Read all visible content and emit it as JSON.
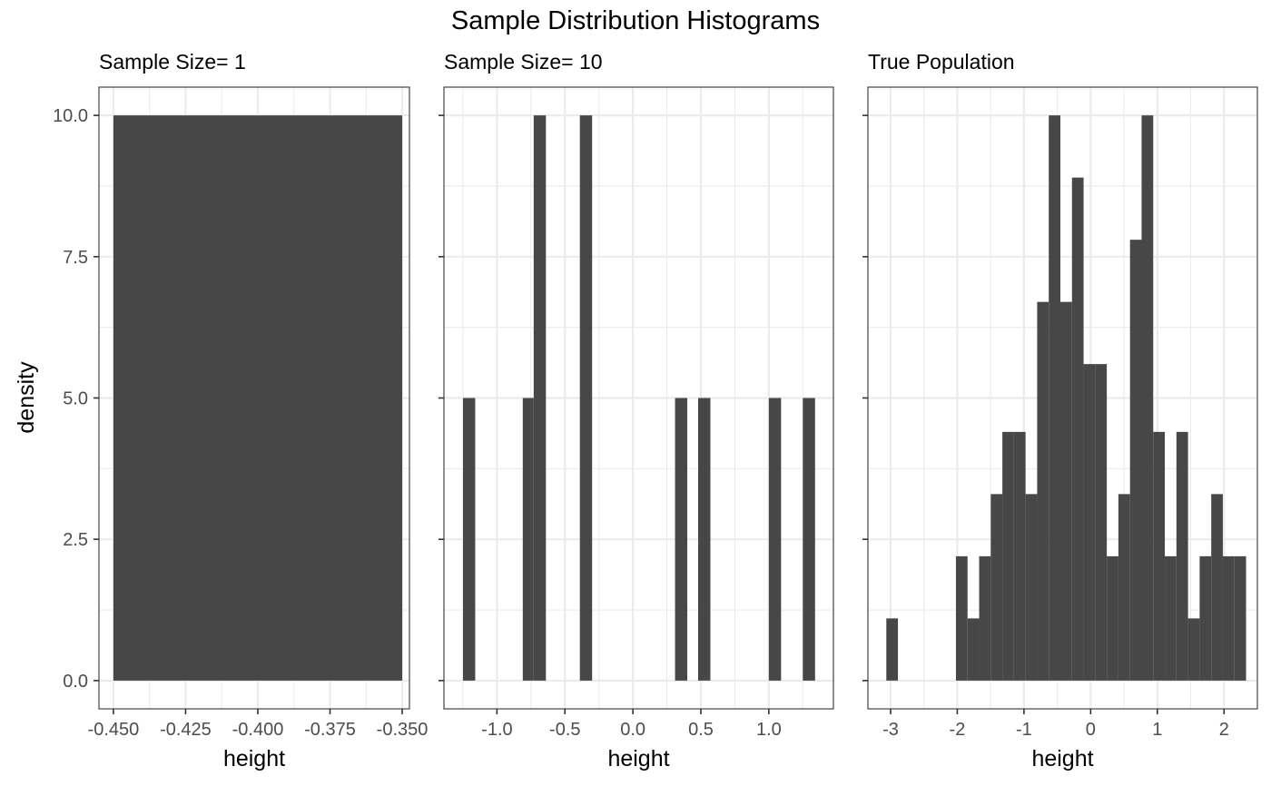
{
  "title": "Sample Distribution Histograms",
  "y_axis_label": "density",
  "colors": {
    "bar": "#474747",
    "grid": "#ebebeb",
    "frame": "#333333",
    "tick_text": "#4d4d4d"
  },
  "chart_data": [
    {
      "type": "bar",
      "title": "Sample Size= 1",
      "xlabel": "height",
      "ylabel": "density",
      "xlim": [
        -0.455,
        -0.3475
      ],
      "ylim": [
        -0.5,
        10.5
      ],
      "x_ticks": [
        -0.45,
        -0.425,
        -0.4,
        -0.375,
        -0.35
      ],
      "x_tick_labels": [
        "-0.450",
        "-0.425",
        "-0.400",
        "-0.375",
        "-0.350"
      ],
      "y_ticks": [
        0,
        2.5,
        5,
        7.5,
        10
      ],
      "y_tick_labels": [
        "0.0",
        "2.5",
        "5.0",
        "7.5",
        "10.0"
      ],
      "bars": [
        {
          "x0": -0.45,
          "x1": -0.35,
          "y": 10
        }
      ]
    },
    {
      "type": "bar",
      "title": "Sample Size= 10",
      "xlabel": "height",
      "ylabel": "density",
      "xlim": [
        -1.39,
        1.475
      ],
      "ylim": [
        -0.5,
        10.5
      ],
      "x_ticks": [
        -1.0,
        -0.5,
        0.0,
        0.5,
        1.0
      ],
      "x_tick_labels": [
        "-1.0",
        "-0.5",
        "0.0",
        "0.5",
        "1.0"
      ],
      "y_ticks": [
        0,
        2.5,
        5,
        7.5,
        10
      ],
      "y_tick_labels": [
        "",
        "",
        "",
        "",
        ""
      ],
      "bars": [
        {
          "x0": -1.25,
          "x1": -1.16,
          "y": 5
        },
        {
          "x0": -0.81,
          "x1": -0.73,
          "y": 5
        },
        {
          "x0": -0.73,
          "x1": -0.64,
          "y": 10
        },
        {
          "x0": -0.39,
          "x1": -0.3,
          "y": 10
        },
        {
          "x0": 0.31,
          "x1": 0.4,
          "y": 5
        },
        {
          "x0": 0.48,
          "x1": 0.57,
          "y": 5
        },
        {
          "x0": 1.0,
          "x1": 1.09,
          "y": 5
        },
        {
          "x0": 1.25,
          "x1": 1.34,
          "y": 5
        }
      ]
    },
    {
      "type": "bar",
      "title": "True Population",
      "xlabel": "height",
      "ylabel": "density",
      "xlim": [
        -3.34,
        2.5
      ],
      "ylim": [
        -0.5,
        10.5
      ],
      "x_ticks": [
        -3,
        -2,
        -1,
        0,
        1,
        2
      ],
      "x_tick_labels": [
        "-3",
        "-2",
        "-1",
        "0",
        "1",
        "2"
      ],
      "y_ticks": [
        0,
        2.5,
        5,
        7.5,
        10
      ],
      "y_tick_labels": [
        "",
        "",
        "",
        "",
        ""
      ],
      "bins_start": -3.064,
      "bin_width": 0.174,
      "values": [
        1.1,
        0,
        0,
        0,
        0,
        0,
        2.2,
        1.1,
        2.2,
        3.3,
        4.4,
        4.4,
        3.3,
        6.7,
        10,
        6.7,
        8.9,
        5.6,
        5.6,
        2.2,
        3.3,
        7.8,
        10,
        4.4,
        2.2,
        4.4,
        1.1,
        2.2,
        3.3,
        2.2,
        2.2
      ]
    }
  ]
}
